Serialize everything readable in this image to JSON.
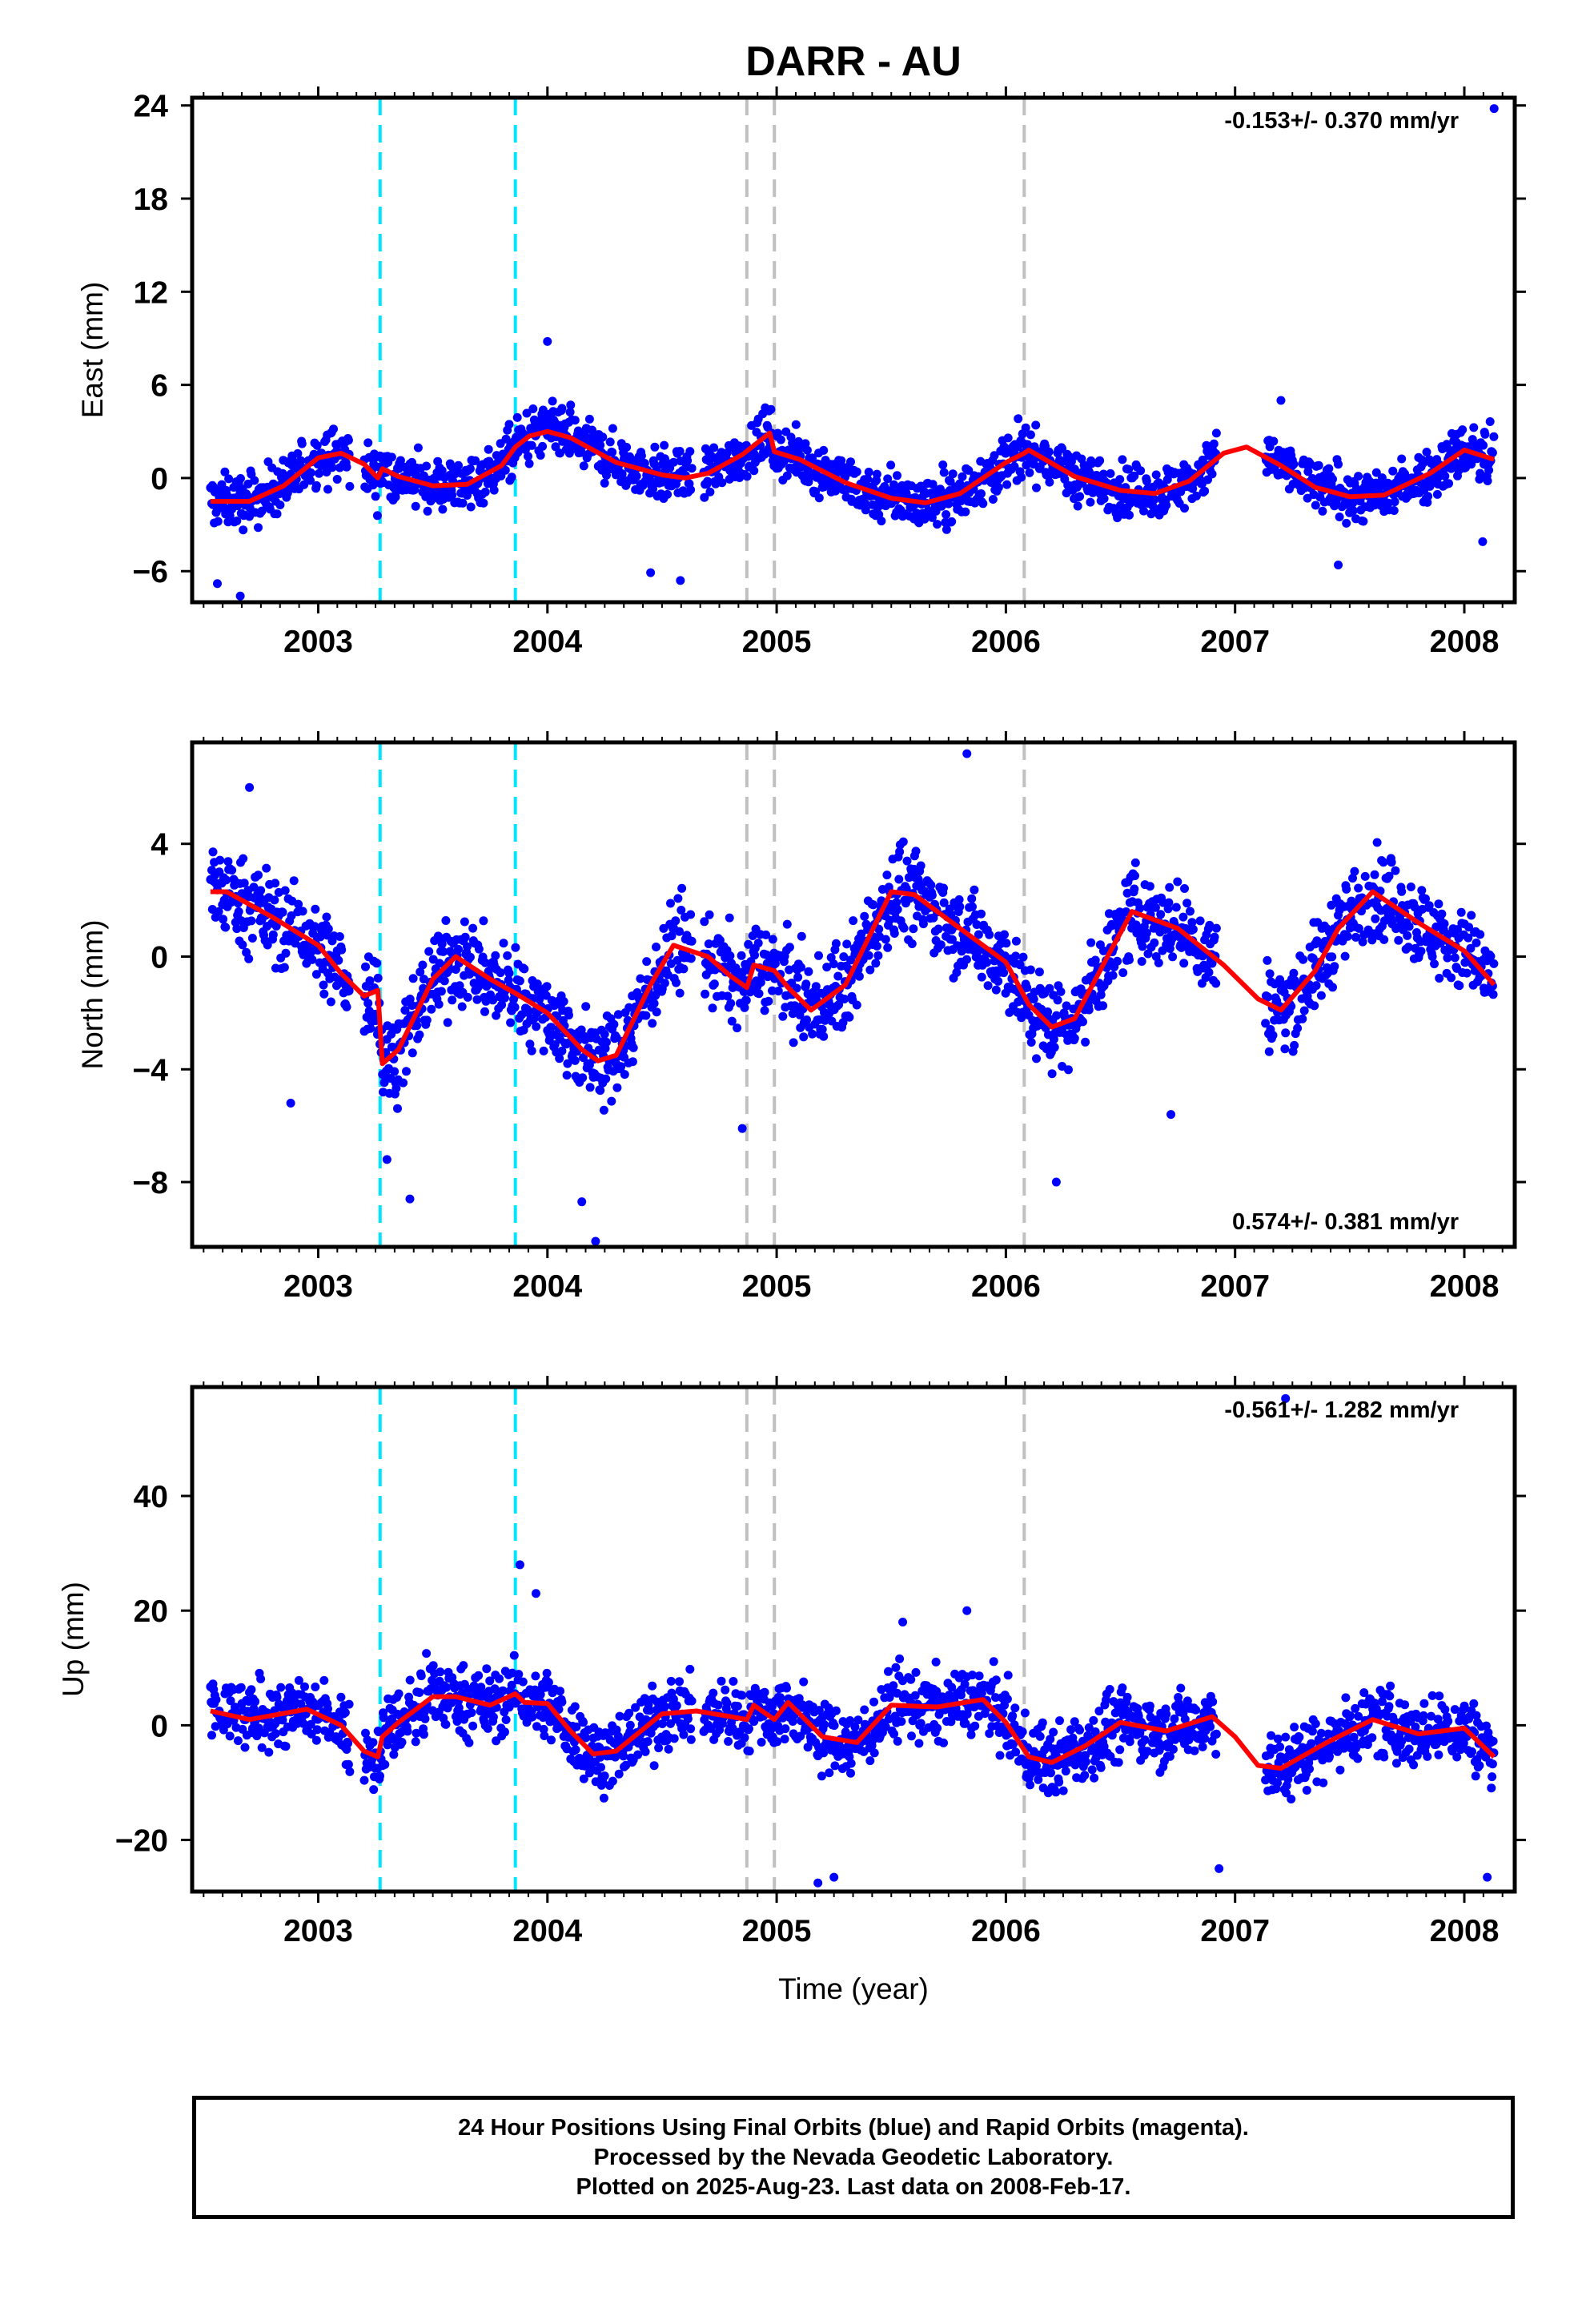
{
  "title": "DARR - AU",
  "colors": {
    "data": "#0000ff",
    "fit": "#ff0000",
    "cyan_line": "#00e5ff",
    "gray_line": "#c0c0c0",
    "axis": "#000000"
  },
  "x_axis": {
    "label": "Time (year)",
    "xlim": [
      2002.45,
      2008.22
    ],
    "tick_labels": [
      "2003",
      "2004",
      "2005",
      "2006",
      "2007",
      "2008"
    ]
  },
  "event_lines": {
    "cyan": [
      2003.27,
      2003.86
    ],
    "gray": [
      2004.87,
      2004.99,
      2006.08
    ]
  },
  "footer": {
    "line1": "24 Hour Positions Using Final Orbits (blue) and Rapid Orbits (magenta).",
    "line2": "Processed by the Nevada Geodetic Laboratory.",
    "line3": "Plotted on 2025-Aug-23. Last data on 2008-Feb-17."
  },
  "chart_data": [
    {
      "type": "scatter",
      "component": "east",
      "ylabel": "East (mm)",
      "ylim": [
        -8,
        24.5
      ],
      "y_ticks": [
        -6,
        0,
        6,
        12,
        18,
        24
      ],
      "rate_text": "-0.153+/- 0.370 mm/yr",
      "rate_position": "top-right",
      "data_range_x": [
        2002.53,
        2008.13
      ],
      "fit_curve": {
        "x": [
          2002.53,
          2002.7,
          2002.85,
          2003.0,
          2003.1,
          2003.2,
          2003.26,
          2003.28,
          2003.35,
          2003.5,
          2003.65,
          2003.8,
          2003.86,
          2003.92,
          2004.0,
          2004.1,
          2004.3,
          2004.5,
          2004.6,
          2004.7,
          2004.85,
          2004.97,
          2004.99,
          2005.1,
          2005.3,
          2005.5,
          2005.65,
          2005.8,
          2006.0,
          2006.08,
          2006.1,
          2006.3,
          2006.5,
          2006.65,
          2006.8,
          2006.95,
          2007.05,
          2007.2,
          2007.35,
          2007.5,
          2007.65,
          2007.85,
          2008.0,
          2008.13
        ],
        "y": [
          -1.5,
          -1.5,
          -0.5,
          1.3,
          1.6,
          0.9,
          0.0,
          0.6,
          0.1,
          -0.5,
          -0.4,
          0.8,
          2.0,
          2.7,
          3.0,
          2.6,
          1.0,
          0.2,
          0.0,
          0.3,
          1.5,
          2.9,
          1.7,
          1.2,
          -0.3,
          -1.3,
          -1.6,
          -1.0,
          1.0,
          1.6,
          1.8,
          0.1,
          -0.8,
          -1.0,
          -0.2,
          1.6,
          2.0,
          0.8,
          -0.6,
          -1.2,
          -1.1,
          0.3,
          1.8,
          1.2
        ]
      },
      "scatter_spread": 1.4,
      "outliers": [
        {
          "x": 2008.13,
          "y": 23.8
        },
        {
          "x": 2002.56,
          "y": -6.8
        },
        {
          "x": 2002.66,
          "y": -7.6
        },
        {
          "x": 2004.0,
          "y": 8.8
        },
        {
          "x": 2004.45,
          "y": -6.1
        },
        {
          "x": 2004.58,
          "y": -6.6
        },
        {
          "x": 2007.2,
          "y": 5.0
        },
        {
          "x": 2007.45,
          "y": -5.6
        },
        {
          "x": 2008.08,
          "y": -4.1
        }
      ]
    },
    {
      "type": "scatter",
      "component": "north",
      "ylabel": "North (mm)",
      "ylim": [
        -10.3,
        7.6
      ],
      "y_ticks": [
        -8,
        -4,
        0,
        4
      ],
      "rate_text": "0.574+/- 0.381 mm/yr",
      "rate_position": "bottom-right",
      "data_range_x": [
        2002.53,
        2008.13
      ],
      "fit_curve": {
        "x": [
          2002.53,
          2002.6,
          2002.8,
          2003.0,
          2003.1,
          2003.2,
          2003.26,
          2003.28,
          2003.35,
          2003.5,
          2003.6,
          2003.75,
          2003.86,
          2004.0,
          2004.15,
          2004.22,
          2004.3,
          2004.45,
          2004.55,
          2004.7,
          2004.8,
          2004.87,
          2004.9,
          2004.99,
          2005.05,
          2005.15,
          2005.3,
          2005.5,
          2005.6,
          2005.8,
          2006.0,
          2006.1,
          2006.2,
          2006.3,
          2006.45,
          2006.55,
          2006.75,
          2006.95,
          2007.1,
          2007.2,
          2007.35,
          2007.45,
          2007.6,
          2007.8,
          2008.0,
          2008.13
        ],
        "y": [
          2.3,
          2.3,
          1.4,
          0.4,
          -0.6,
          -1.4,
          -1.2,
          -3.8,
          -3.3,
          -0.8,
          0.0,
          -0.8,
          -1.3,
          -2.0,
          -3.3,
          -3.7,
          -3.5,
          -1.0,
          0.4,
          0.0,
          -0.7,
          -1.1,
          -0.3,
          -0.5,
          -1.1,
          -1.9,
          -1.0,
          2.3,
          2.2,
          1.0,
          -0.2,
          -1.7,
          -2.5,
          -2.2,
          0.1,
          1.6,
          1.0,
          -0.3,
          -1.5,
          -1.9,
          -0.5,
          1.0,
          2.3,
          1.2,
          0.2,
          -1.0
        ]
      },
      "scatter_spread": 1.3,
      "outliers": [
        {
          "x": 2002.7,
          "y": 6.0
        },
        {
          "x": 2005.83,
          "y": 7.2
        },
        {
          "x": 2002.88,
          "y": -5.2
        },
        {
          "x": 2003.3,
          "y": -7.2
        },
        {
          "x": 2003.4,
          "y": -8.6
        },
        {
          "x": 2004.15,
          "y": -8.7
        },
        {
          "x": 2004.21,
          "y": -10.1
        },
        {
          "x": 2004.85,
          "y": -6.1
        },
        {
          "x": 2006.22,
          "y": -8.0
        },
        {
          "x": 2006.72,
          "y": -5.6
        }
      ]
    },
    {
      "type": "scatter",
      "component": "up",
      "ylabel": "Up (mm)",
      "ylim": [
        -29,
        59
      ],
      "y_ticks": [
        -20,
        0,
        20,
        40
      ],
      "rate_text": "-0.561+/- 1.282 mm/yr",
      "rate_position": "top-right",
      "data_range_x": [
        2002.53,
        2008.13
      ],
      "fit_curve": {
        "x": [
          2002.53,
          2002.7,
          2002.95,
          2003.1,
          2003.2,
          2003.26,
          2003.28,
          2003.35,
          2003.5,
          2003.6,
          2003.75,
          2003.86,
          2003.9,
          2004.0,
          2004.1,
          2004.2,
          2004.3,
          2004.5,
          2004.65,
          2004.8,
          2004.87,
          2004.9,
          2004.99,
          2005.05,
          2005.2,
          2005.35,
          2005.5,
          2005.7,
          2005.9,
          2006.0,
          2006.1,
          2006.2,
          2006.35,
          2006.5,
          2006.7,
          2006.9,
          2007.0,
          2007.1,
          2007.2,
          2007.4,
          2007.6,
          2007.8,
          2008.0,
          2008.13
        ],
        "y": [
          2.5,
          1.0,
          2.8,
          0.0,
          -4.5,
          -5.5,
          -2.0,
          0.5,
          5.0,
          5.0,
          3.5,
          5.5,
          4.0,
          3.8,
          -1.0,
          -5.0,
          -4.5,
          2.0,
          2.5,
          1.5,
          1.0,
          3.5,
          1.0,
          4.0,
          -2.0,
          -3.0,
          3.5,
          3.2,
          4.5,
          0.5,
          -5.5,
          -6.5,
          -3.5,
          0.5,
          -1.0,
          1.5,
          -2.0,
          -7.0,
          -7.5,
          -3.0,
          1.0,
          -1.5,
          -0.5,
          -5.5
        ]
      },
      "scatter_spread": 5.0,
      "outliers": [
        {
          "x": 2003.88,
          "y": 28.0
        },
        {
          "x": 2003.95,
          "y": 23.0
        },
        {
          "x": 2005.55,
          "y": 18.0
        },
        {
          "x": 2005.83,
          "y": 20.0
        },
        {
          "x": 2005.18,
          "y": -27.5
        },
        {
          "x": 2005.25,
          "y": -26.5
        },
        {
          "x": 2006.93,
          "y": -25.0
        },
        {
          "x": 2008.1,
          "y": -26.5
        },
        {
          "x": 2007.22,
          "y": 57.0
        }
      ]
    }
  ]
}
